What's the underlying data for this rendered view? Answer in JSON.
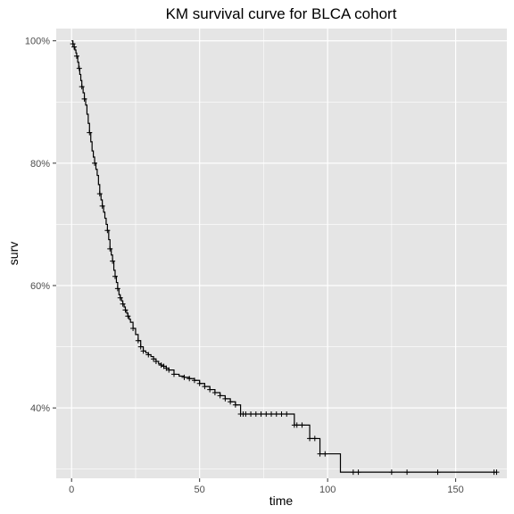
{
  "chart_data": {
    "type": "line",
    "title": "KM survival curve for BLCA cohort",
    "xlabel": "time",
    "ylabel": "surv",
    "xlim": [
      -6,
      170
    ],
    "ylim": [
      0.285,
      1.02
    ],
    "x_ticks": [
      0,
      50,
      100,
      150
    ],
    "x_tick_labels": [
      "0",
      "50",
      "100",
      "150"
    ],
    "y_ticks": [
      0.4,
      0.6,
      0.8,
      1.0
    ],
    "y_tick_labels": [
      "40%",
      "60%",
      "80%",
      "100%"
    ],
    "grid": true,
    "legend": "none",
    "colors": {
      "panel": "#e5e5e5",
      "grid": "#ffffff",
      "line": "#000000",
      "tick_text": "#4d4d4d"
    },
    "series": [
      {
        "x": [
          0,
          0.5,
          1.0,
          1.3,
          1.7,
          2.0,
          2.4,
          2.8,
          3.2,
          3.6,
          4.0,
          4.5,
          5.0,
          5.5,
          6.0,
          6.5,
          7.0,
          7.5,
          8.0,
          8.5,
          9.0,
          9.5,
          10.0,
          10.5,
          11.0,
          11.5,
          12.0,
          12.5,
          13.0,
          13.5,
          14.0,
          14.5,
          15.0,
          15.5,
          16.0,
          16.5,
          17.0,
          17.5,
          18.0,
          18.5,
          19.0,
          19.5,
          20.0,
          20.5,
          21.0,
          21.5,
          22.0,
          22.5,
          23.0,
          24.0,
          25.0,
          26.0,
          27.0,
          28.0,
          29.0,
          30.0,
          31.0,
          32.0,
          33.0,
          34.0,
          35.0,
          36.0,
          37.0,
          38.0,
          40.0,
          42.0,
          44.0,
          46.0,
          48.0,
          50.0,
          52.0,
          54.0,
          56.0,
          58.0,
          60.0,
          62.0,
          64.0,
          66.0,
          67.0,
          70.0,
          75.0,
          80.0,
          87.0,
          93.0,
          95.0,
          97.0,
          105.0,
          120.0,
          166.0
        ],
        "y": [
          1.0,
          0.995,
          0.99,
          0.985,
          0.98,
          0.975,
          0.965,
          0.955,
          0.945,
          0.935,
          0.925,
          0.915,
          0.905,
          0.895,
          0.88,
          0.865,
          0.85,
          0.835,
          0.82,
          0.81,
          0.8,
          0.79,
          0.78,
          0.765,
          0.75,
          0.74,
          0.73,
          0.72,
          0.71,
          0.7,
          0.69,
          0.675,
          0.66,
          0.65,
          0.64,
          0.625,
          0.615,
          0.605,
          0.595,
          0.585,
          0.58,
          0.575,
          0.57,
          0.565,
          0.56,
          0.555,
          0.55,
          0.545,
          0.54,
          0.53,
          0.52,
          0.51,
          0.5,
          0.493,
          0.49,
          0.487,
          0.484,
          0.48,
          0.476,
          0.472,
          0.47,
          0.468,
          0.465,
          0.462,
          0.455,
          0.452,
          0.45,
          0.448,
          0.445,
          0.44,
          0.435,
          0.43,
          0.425,
          0.42,
          0.415,
          0.41,
          0.405,
          0.39,
          0.39,
          0.39,
          0.39,
          0.39,
          0.372,
          0.35,
          0.35,
          0.325,
          0.295,
          0.295,
          0.295
        ],
        "censor_x": [
          0.5,
          1.0,
          2.0,
          3.0,
          4.0,
          5.0,
          7.0,
          9.0,
          11.0,
          12.0,
          14.0,
          15.0,
          16.0,
          17.0,
          18.0,
          19.0,
          20.0,
          21.0,
          22.0,
          24.0,
          26.0,
          27.0,
          28.0,
          30.0,
          32.0,
          33.0,
          35.0,
          36.0,
          37.0,
          38.0,
          40.0,
          44.0,
          46.0,
          48.0,
          50.0,
          52.0,
          54.0,
          56.0,
          58.0,
          60.0,
          62.0,
          64.0,
          66.0,
          67.0,
          68.0,
          70.0,
          72.0,
          74.0,
          76.0,
          78.0,
          80.0,
          82.0,
          84.0,
          87.0,
          88.0,
          90.0,
          93.0,
          95.0,
          97.0,
          99.0,
          110.0,
          112.0,
          125.0,
          131.0,
          143.0,
          165.0,
          166.0
        ]
      }
    ]
  }
}
